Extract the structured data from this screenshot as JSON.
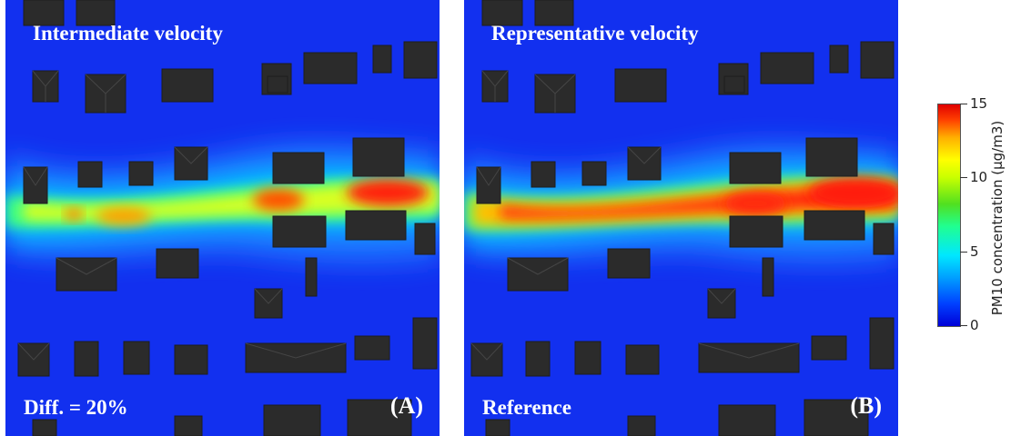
{
  "panel_a": {
    "title": "Intermediate velocity",
    "corner_label": "Diff. = 20%",
    "tag": "(A)"
  },
  "panel_b": {
    "title": "Representative velocity",
    "corner_label": "Reference",
    "tag": "(B)"
  },
  "colorbar": {
    "title": "PM10 concentration (µg/m3)",
    "ticks": [
      "15",
      "10",
      "5",
      "0"
    ],
    "range": [
      0,
      15
    ],
    "colors": [
      "#0000d8",
      "#00e8ff",
      "#ffff00",
      "#e00000"
    ]
  },
  "colors": {
    "background": "#1230ef",
    "building": "#2b2b2b",
    "building_roof": "#3a3a3a"
  }
}
